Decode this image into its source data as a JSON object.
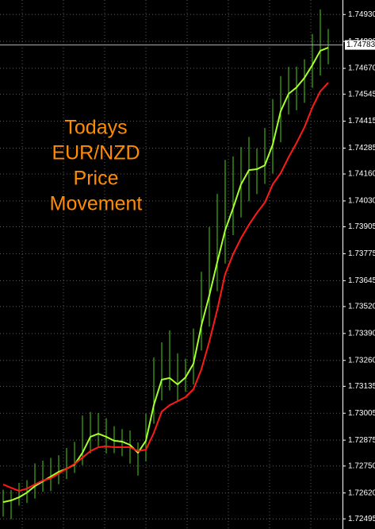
{
  "chart_data": {
    "type": "range_lines",
    "annotation": [
      "Todays",
      "EUR/NZD",
      "Price",
      "Movement"
    ],
    "annotation_color": "#ff8c00",
    "categories": [
      null,
      null,
      null,
      null,
      null,
      null,
      null,
      null,
      null,
      null,
      null,
      null,
      null,
      null,
      null,
      null,
      null,
      null,
      null,
      null,
      null,
      null,
      null,
      null,
      null,
      null,
      null,
      null,
      null,
      null,
      null,
      null,
      null,
      null,
      null,
      null,
      null,
      null,
      null,
      null,
      null,
      null
    ],
    "series": [
      {
        "type": "range",
        "color": "#4fd11a",
        "high": [
          1.72636,
          1.72634,
          1.72669,
          1.72682,
          1.72763,
          1.72776,
          1.72789,
          1.72802,
          1.72837,
          1.72867,
          1.72994,
          1.73011,
          1.73006,
          1.72981,
          1.72942,
          1.72928,
          1.72922,
          1.72864,
          1.73002,
          1.73274,
          1.73347,
          1.73405,
          1.73294,
          1.73268,
          1.73414,
          1.73688,
          1.73903,
          1.74064,
          1.74228,
          1.74245,
          1.7429,
          1.74339,
          1.74283,
          1.74382,
          1.74522,
          1.74633,
          1.74677,
          1.74678,
          1.74714,
          1.74836,
          1.74955,
          1.7486
        ],
        "low": [
          1.72506,
          1.72494,
          1.72559,
          1.72572,
          1.72593,
          1.72626,
          1.72629,
          1.72662,
          1.72687,
          1.72717,
          1.72754,
          1.72811,
          1.72846,
          1.72811,
          1.72812,
          1.72798,
          1.72762,
          1.72704,
          1.72772,
          1.72954,
          1.73067,
          1.73115,
          1.73064,
          1.73108,
          1.73144,
          1.73308,
          1.73423,
          1.73594,
          1.73728,
          1.73865,
          1.7395,
          1.74029,
          1.74063,
          1.74112,
          1.74162,
          1.74313,
          1.74447,
          1.74468,
          1.74504,
          1.74576,
          1.74635,
          1.7469
        ]
      },
      {
        "type": "line",
        "color": "#a6ff2e",
        "values": [
          1.72576,
          1.72584,
          1.72599,
          1.72622,
          1.72653,
          1.72676,
          1.72699,
          1.72722,
          1.72737,
          1.72757,
          1.72814,
          1.72891,
          1.72906,
          1.72891,
          1.72872,
          1.72868,
          1.72852,
          1.72814,
          1.72872,
          1.73044,
          1.73167,
          1.73175,
          1.73144,
          1.73178,
          1.73244,
          1.73428,
          1.73573,
          1.73734,
          1.73888,
          1.73995,
          1.7411,
          1.74179,
          1.74183,
          1.74202,
          1.74302,
          1.74463,
          1.74547,
          1.74578,
          1.74624,
          1.74686,
          1.74755,
          1.7477
        ]
      },
      {
        "type": "line",
        "color": "#ff1a1a",
        "values": [
          1.72661,
          1.72645,
          1.7263,
          1.72641,
          1.72661,
          1.7268,
          1.72691,
          1.72714,
          1.72737,
          1.7276,
          1.72791,
          1.72822,
          1.72841,
          1.72845,
          1.72841,
          1.72841,
          1.72841,
          1.72822,
          1.72829,
          1.7291,
          1.73013,
          1.73044,
          1.73063,
          1.73083,
          1.73121,
          1.73217,
          1.73351,
          1.73504,
          1.73677,
          1.73773,
          1.7385,
          1.73915,
          1.73972,
          1.74022,
          1.7411,
          1.74164,
          1.74241,
          1.7431,
          1.74386,
          1.74482,
          1.74559,
          1.74601
        ]
      }
    ],
    "last_price": 1.74783,
    "ylim": [
      1.72446,
      1.75
    ],
    "yticks": [
      {
        "value": 1.7493,
        "label": "1.74930"
      },
      {
        "value": 1.748,
        "label": "1.74800"
      },
      {
        "value": 1.7467,
        "label": "1.74670"
      },
      1.74545,
      1.74415,
      1.74285,
      {
        "value": 1.7416,
        "label": "1.74160"
      },
      {
        "value": 1.7403,
        "label": "1.74030"
      },
      1.73905,
      1.73775,
      1.73645,
      {
        "value": 1.7352,
        "label": "1.73520"
      },
      {
        "value": 1.7339,
        "label": "1.73390"
      },
      {
        "value": 1.7326,
        "label": "1.73260"
      },
      1.73135,
      1.73005,
      1.72875,
      {
        "value": 1.7275,
        "label": "1.72750"
      },
      {
        "value": 1.7262,
        "label": "1.72620"
      },
      1.72495
    ],
    "grid": true
  }
}
